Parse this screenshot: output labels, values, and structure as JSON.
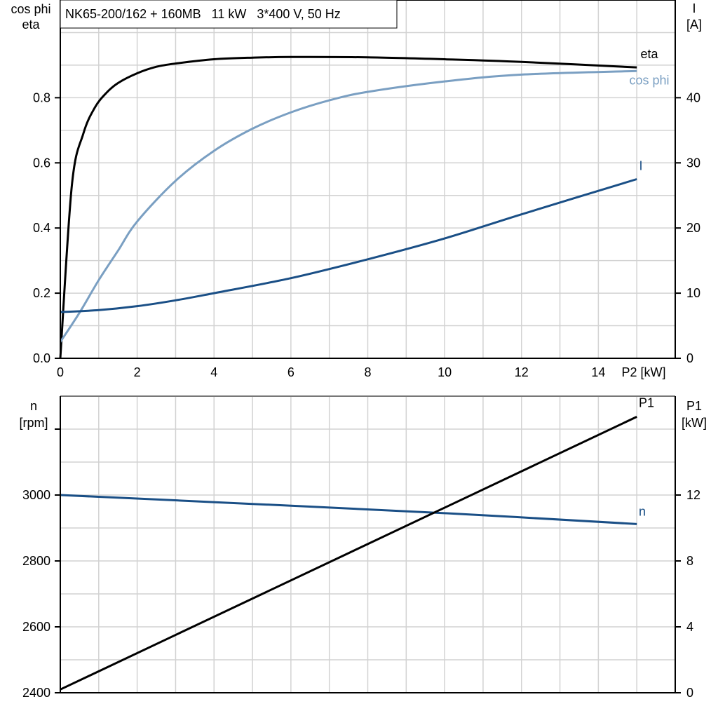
{
  "title": "NK65-200/162 + 160MB   11 kW   3*400 V, 50 Hz",
  "chart_data": [
    {
      "type": "line",
      "xlabel": "P2 [kW]",
      "xlim": [
        0,
        16
      ],
      "x_ticks": [
        0,
        2,
        4,
        6,
        8,
        10,
        12,
        14
      ],
      "ylabel_left": [
        "cos phi",
        "eta"
      ],
      "ylim_left": [
        0,
        1.1
      ],
      "y_ticks_left": [
        0.0,
        0.2,
        0.4,
        0.6,
        0.8
      ],
      "ylabel_right": [
        "I",
        "[A]"
      ],
      "ylim_right": [
        0,
        55
      ],
      "y_ticks_right": [
        0,
        10,
        20,
        30,
        40
      ],
      "grid": true,
      "series": [
        {
          "name": "eta",
          "axis": "left",
          "color": "#000000",
          "x": [
            0,
            0.3,
            0.6,
            0.9,
            1.2,
            1.5,
            2,
            2.5,
            3,
            4,
            5,
            6,
            8,
            10,
            12,
            15
          ],
          "y": [
            0,
            0.53,
            0.69,
            0.77,
            0.815,
            0.845,
            0.875,
            0.895,
            0.905,
            0.918,
            0.923,
            0.925,
            0.924,
            0.918,
            0.91,
            0.893
          ]
        },
        {
          "name": "cos phi",
          "axis": "left",
          "color": "#7a9fc2",
          "x": [
            0,
            0.5,
            1,
            1.5,
            2,
            3,
            4,
            5,
            6,
            7,
            8,
            10,
            12,
            15
          ],
          "y": [
            0.05,
            0.14,
            0.24,
            0.33,
            0.42,
            0.545,
            0.637,
            0.705,
            0.755,
            0.792,
            0.818,
            0.85,
            0.871,
            0.882
          ]
        },
        {
          "name": "I",
          "axis": "right",
          "color": "#1a4f86",
          "x": [
            0,
            1,
            2,
            3,
            4,
            6,
            8,
            10,
            12,
            15
          ],
          "y": [
            7.1,
            7.4,
            8.0,
            8.9,
            10.0,
            12.3,
            15.2,
            18.4,
            22.1,
            27.5
          ]
        }
      ]
    },
    {
      "type": "line",
      "xlim": [
        0,
        16
      ],
      "ylabel_left": [
        "n",
        "[rpm]"
      ],
      "ylim_left": [
        2400,
        3300
      ],
      "y_ticks_left": [
        2400,
        2600,
        2800,
        3000
      ],
      "ylabel_right": [
        "P1",
        "[kW]"
      ],
      "ylim_right": [
        0,
        18
      ],
      "y_ticks_right": [
        0,
        4,
        8,
        12
      ],
      "grid": true,
      "series": [
        {
          "name": "n",
          "axis": "left",
          "color": "#1a4f86",
          "x": [
            0,
            5,
            10,
            15
          ],
          "y": [
            3000,
            2973,
            2945,
            2912
          ]
        },
        {
          "name": "P1",
          "axis": "right",
          "color": "#000000",
          "x": [
            0,
            15
          ],
          "y": [
            0.2,
            16.75
          ]
        }
      ]
    }
  ]
}
